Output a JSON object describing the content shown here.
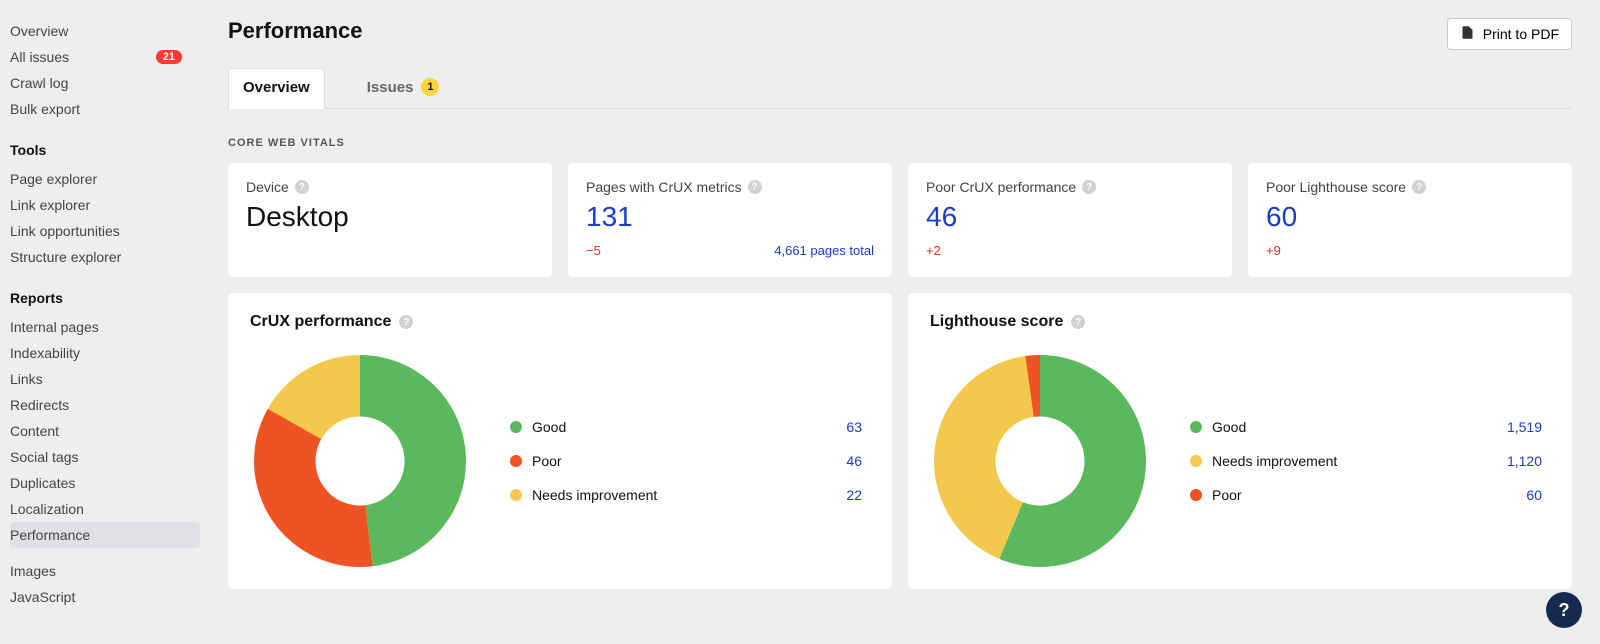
{
  "colors": {
    "page_bg": "#edeef0",
    "card_bg": "#ffffff",
    "link_blue": "#1a3ccc",
    "delta_red": "#d93025",
    "badge_red": "#ff3b30",
    "tab_badge_yellow": "#ffd43b",
    "good_green": "#5cb85c",
    "poor_red": "#f05323",
    "ni_yellow": "#f2c94c",
    "help_bg": "#d0d1d4",
    "fab_bg": "#16294f"
  },
  "sidebar": {
    "overview_label": "Overview",
    "all_issues_label": "All issues",
    "all_issues_badge": "21",
    "crawl_log_label": "Crawl log",
    "bulk_export_label": "Bulk export",
    "tools_heading": "Tools",
    "tools": {
      "page_explorer": "Page explorer",
      "link_explorer": "Link explorer",
      "link_opportunities": "Link opportunities",
      "structure_explorer": "Structure explorer"
    },
    "reports_heading": "Reports",
    "reports": {
      "internal_pages": "Internal pages",
      "indexability": "Indexability",
      "links": "Links",
      "redirects": "Redirects",
      "content": "Content",
      "social_tags": "Social tags",
      "duplicates": "Duplicates",
      "localization": "Localization",
      "performance": "Performance",
      "images": "Images",
      "javascript": "JavaScript"
    }
  },
  "header": {
    "title": "Performance",
    "print_label": "Print to PDF"
  },
  "tabs": {
    "overview": "Overview",
    "issues": "Issues",
    "issues_count": "1"
  },
  "section_label": "CORE WEB VITALS",
  "kpi": {
    "device": {
      "label": "Device",
      "value": "Desktop"
    },
    "crux_pages": {
      "label": "Pages with CrUX metrics",
      "value": "131",
      "delta": "−5",
      "total_text": "4,661 pages total"
    },
    "poor_crux": {
      "label": "Poor CrUX performance",
      "value": "46",
      "delta": "+2"
    },
    "poor_lh": {
      "label": "Poor Lighthouse score",
      "value": "60",
      "delta": "+9"
    }
  },
  "crux_chart": {
    "title": "CrUX performance",
    "type": "donut",
    "slices": [
      {
        "label": "Good",
        "value": 63,
        "display": "63",
        "color": "#5cb85c"
      },
      {
        "label": "Poor",
        "value": 46,
        "display": "46",
        "color": "#f05323"
      },
      {
        "label": "Needs improvement",
        "value": 22,
        "display": "22",
        "color": "#f2c94c"
      }
    ],
    "start_angle_deg": -90,
    "inner_radius_ratio": 0.42
  },
  "lh_chart": {
    "title": "Lighthouse score",
    "type": "donut",
    "slices": [
      {
        "label": "Good",
        "value": 1519,
        "display": "1,519",
        "color": "#5cb85c"
      },
      {
        "label": "Needs improvement",
        "value": 1120,
        "display": "1,120",
        "color": "#f2c94c"
      },
      {
        "label": "Poor",
        "value": 60,
        "display": "60",
        "color": "#f05323"
      }
    ],
    "start_angle_deg": -90,
    "inner_radius_ratio": 0.42
  }
}
